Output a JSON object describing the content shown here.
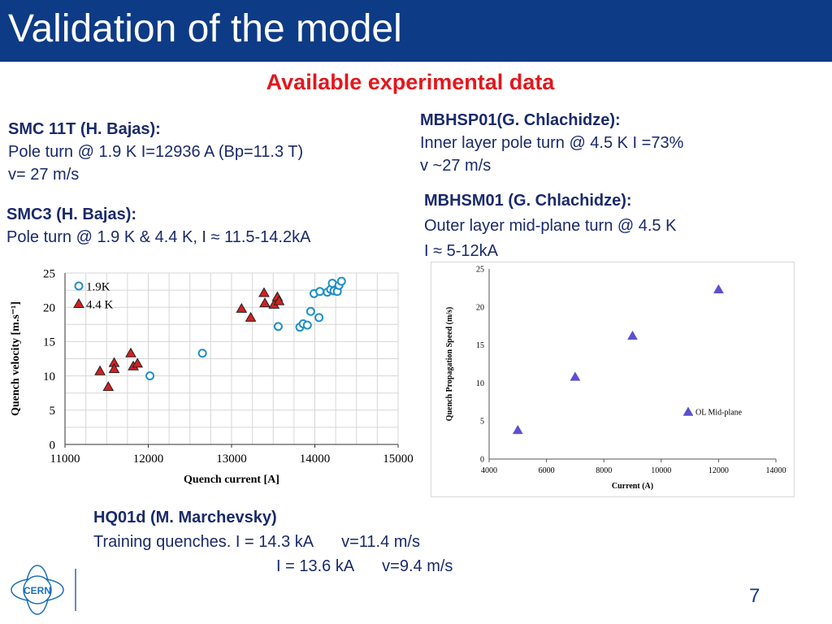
{
  "slide": {
    "title": "Validation of the model",
    "subtitle": "Available experimental data",
    "page_number": "7",
    "logo_text": "CERN"
  },
  "blocks": {
    "smc11t": {
      "head": "SMC 11T (H. Bajas):",
      "line1": "Pole turn @ 1.9 K I=12936 A (Bp=11.3 T)",
      "line2": "v= 27 m/s"
    },
    "smc3": {
      "head": "SMC3 (H. Bajas):",
      "line1": "Pole turn @ 1.9 K & 4.4 K, I ≈ 11.5-14.2kA"
    },
    "mbhsp01": {
      "head": "MBHSP01(G. Chlachidze):",
      "line1": "Inner layer pole turn @ 4.5 K I =73%",
      "line2": "v ~27 m/s"
    },
    "mbhsm01": {
      "head": "MBHSM01 (G. Chlachidze):",
      "line1": "Outer layer mid-plane turn @ 4.5 K",
      "line2": "I ≈ 5-12kA"
    },
    "hq01d": {
      "head": "HQ01d (M. Marchevsky)",
      "line1_a": "Training quenches. I = 14.3 kA",
      "line1_b": "v=11.4 m/s",
      "line2_a": "I = 13.6 kA",
      "line2_b": "v=9.4 m/s"
    }
  },
  "chart_data": [
    {
      "type": "scatter",
      "title": "",
      "xlabel": "Quench current [A]",
      "ylabel": "Quench velocity [m.s⁻¹]",
      "xlim": [
        11000,
        15000
      ],
      "ylim": [
        0,
        25
      ],
      "xticks": [
        11000,
        12000,
        13000,
        14000,
        15000
      ],
      "yticks": [
        0,
        5,
        10,
        15,
        20,
        25
      ],
      "grid": true,
      "legend_position": "top-left",
      "series": [
        {
          "name": "1.9K",
          "marker": "circle",
          "color": "#1f8fc7",
          "points": [
            [
              12020,
              10
            ],
            [
              12650,
              13.3
            ],
            [
              13560,
              17.2
            ],
            [
              13820,
              17.1
            ],
            [
              13860,
              17.6
            ],
            [
              13910,
              17.4
            ],
            [
              13950,
              19.4
            ],
            [
              13990,
              22
            ],
            [
              14050,
              18.5
            ],
            [
              14060,
              22.3
            ],
            [
              14150,
              22.2
            ],
            [
              14190,
              22.6
            ],
            [
              14210,
              23.5
            ],
            [
              14230,
              22.4
            ],
            [
              14270,
              22.3
            ],
            [
              14290,
              23.2
            ],
            [
              14320,
              23.8
            ]
          ]
        },
        {
          "name": "4.4 K",
          "marker": "triangle",
          "color": "#d42020",
          "points": [
            [
              11420,
              10.7
            ],
            [
              11520,
              8.4
            ],
            [
              11590,
              11.9
            ],
            [
              11590,
              11
            ],
            [
              11790,
              13.3
            ],
            [
              11820,
              11.4
            ],
            [
              11870,
              11.8
            ],
            [
              13120,
              19.8
            ],
            [
              13230,
              18.5
            ],
            [
              13390,
              22.1
            ],
            [
              13400,
              20.6
            ],
            [
              13510,
              20.4
            ],
            [
              13550,
              21.5
            ],
            [
              13570,
              20.9
            ]
          ]
        }
      ]
    },
    {
      "type": "scatter",
      "title": "",
      "xlabel": "Current (A)",
      "ylabel": "Quench Propagation Speed (m/s)",
      "xlim": [
        4000,
        14000
      ],
      "ylim": [
        0,
        25
      ],
      "xticks": [
        4000,
        6000,
        8000,
        10000,
        12000,
        14000
      ],
      "yticks": [
        0,
        5,
        10,
        15,
        20,
        25
      ],
      "grid": false,
      "legend_position": "right",
      "series": [
        {
          "name": "OL Mid-plane",
          "marker": "triangle",
          "color": "#5b4fd0",
          "points": [
            [
              5000,
              3.8
            ],
            [
              7000,
              10.8
            ],
            [
              9000,
              16.2
            ],
            [
              12000,
              22.3
            ]
          ]
        }
      ]
    }
  ]
}
